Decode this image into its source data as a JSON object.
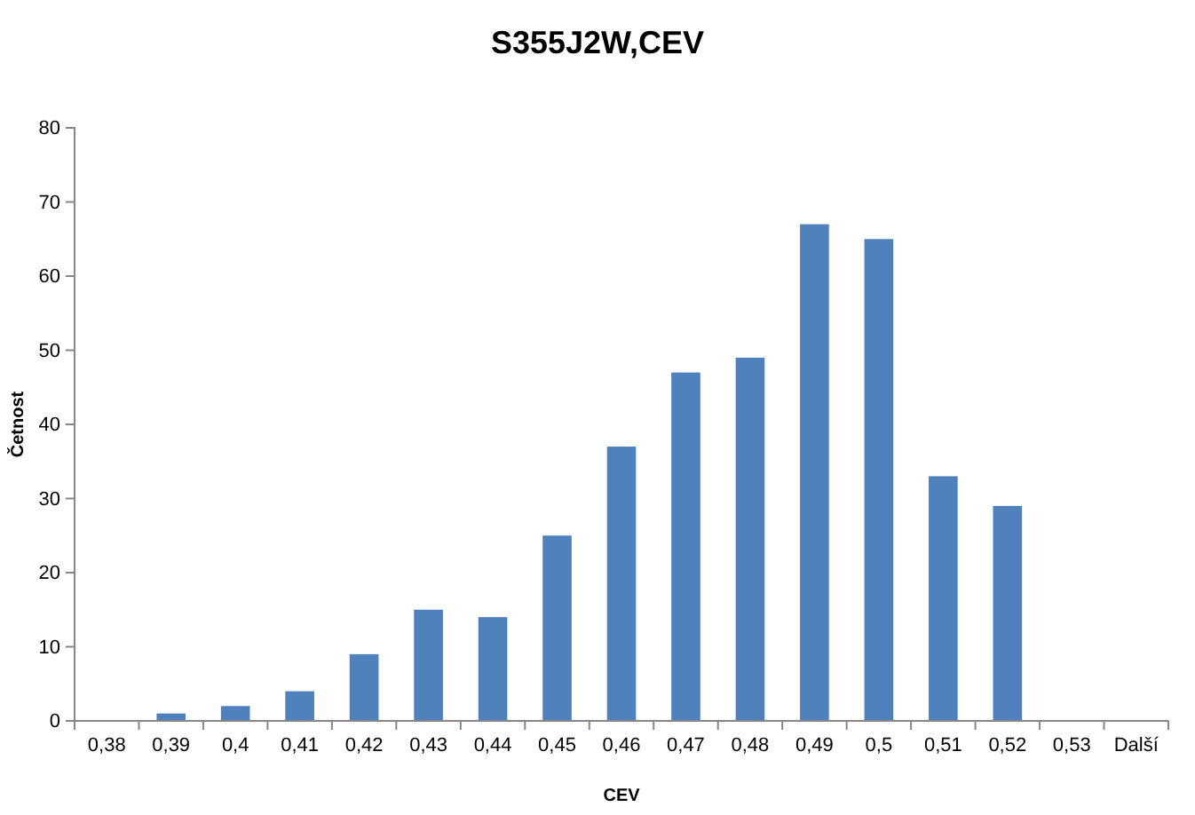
{
  "chart_data": {
    "type": "bar",
    "title": "S355J2W,CEV",
    "xlabel": "CEV",
    "ylabel": "Četnost",
    "categories": [
      "0,38",
      "0,39",
      "0,4",
      "0,41",
      "0,42",
      "0,43",
      "0,44",
      "0,45",
      "0,46",
      "0,47",
      "0,48",
      "0,49",
      "0,5",
      "0,51",
      "0,52",
      "0,53",
      "Další"
    ],
    "values": [
      0,
      1,
      2,
      4,
      9,
      15,
      14,
      25,
      37,
      47,
      49,
      67,
      65,
      33,
      29,
      0,
      0
    ],
    "color": "#4f81bd",
    "ylim": [
      0,
      80
    ],
    "yticks": [
      0,
      10,
      20,
      30,
      40,
      50,
      60,
      70,
      80
    ],
    "grid": false
  }
}
